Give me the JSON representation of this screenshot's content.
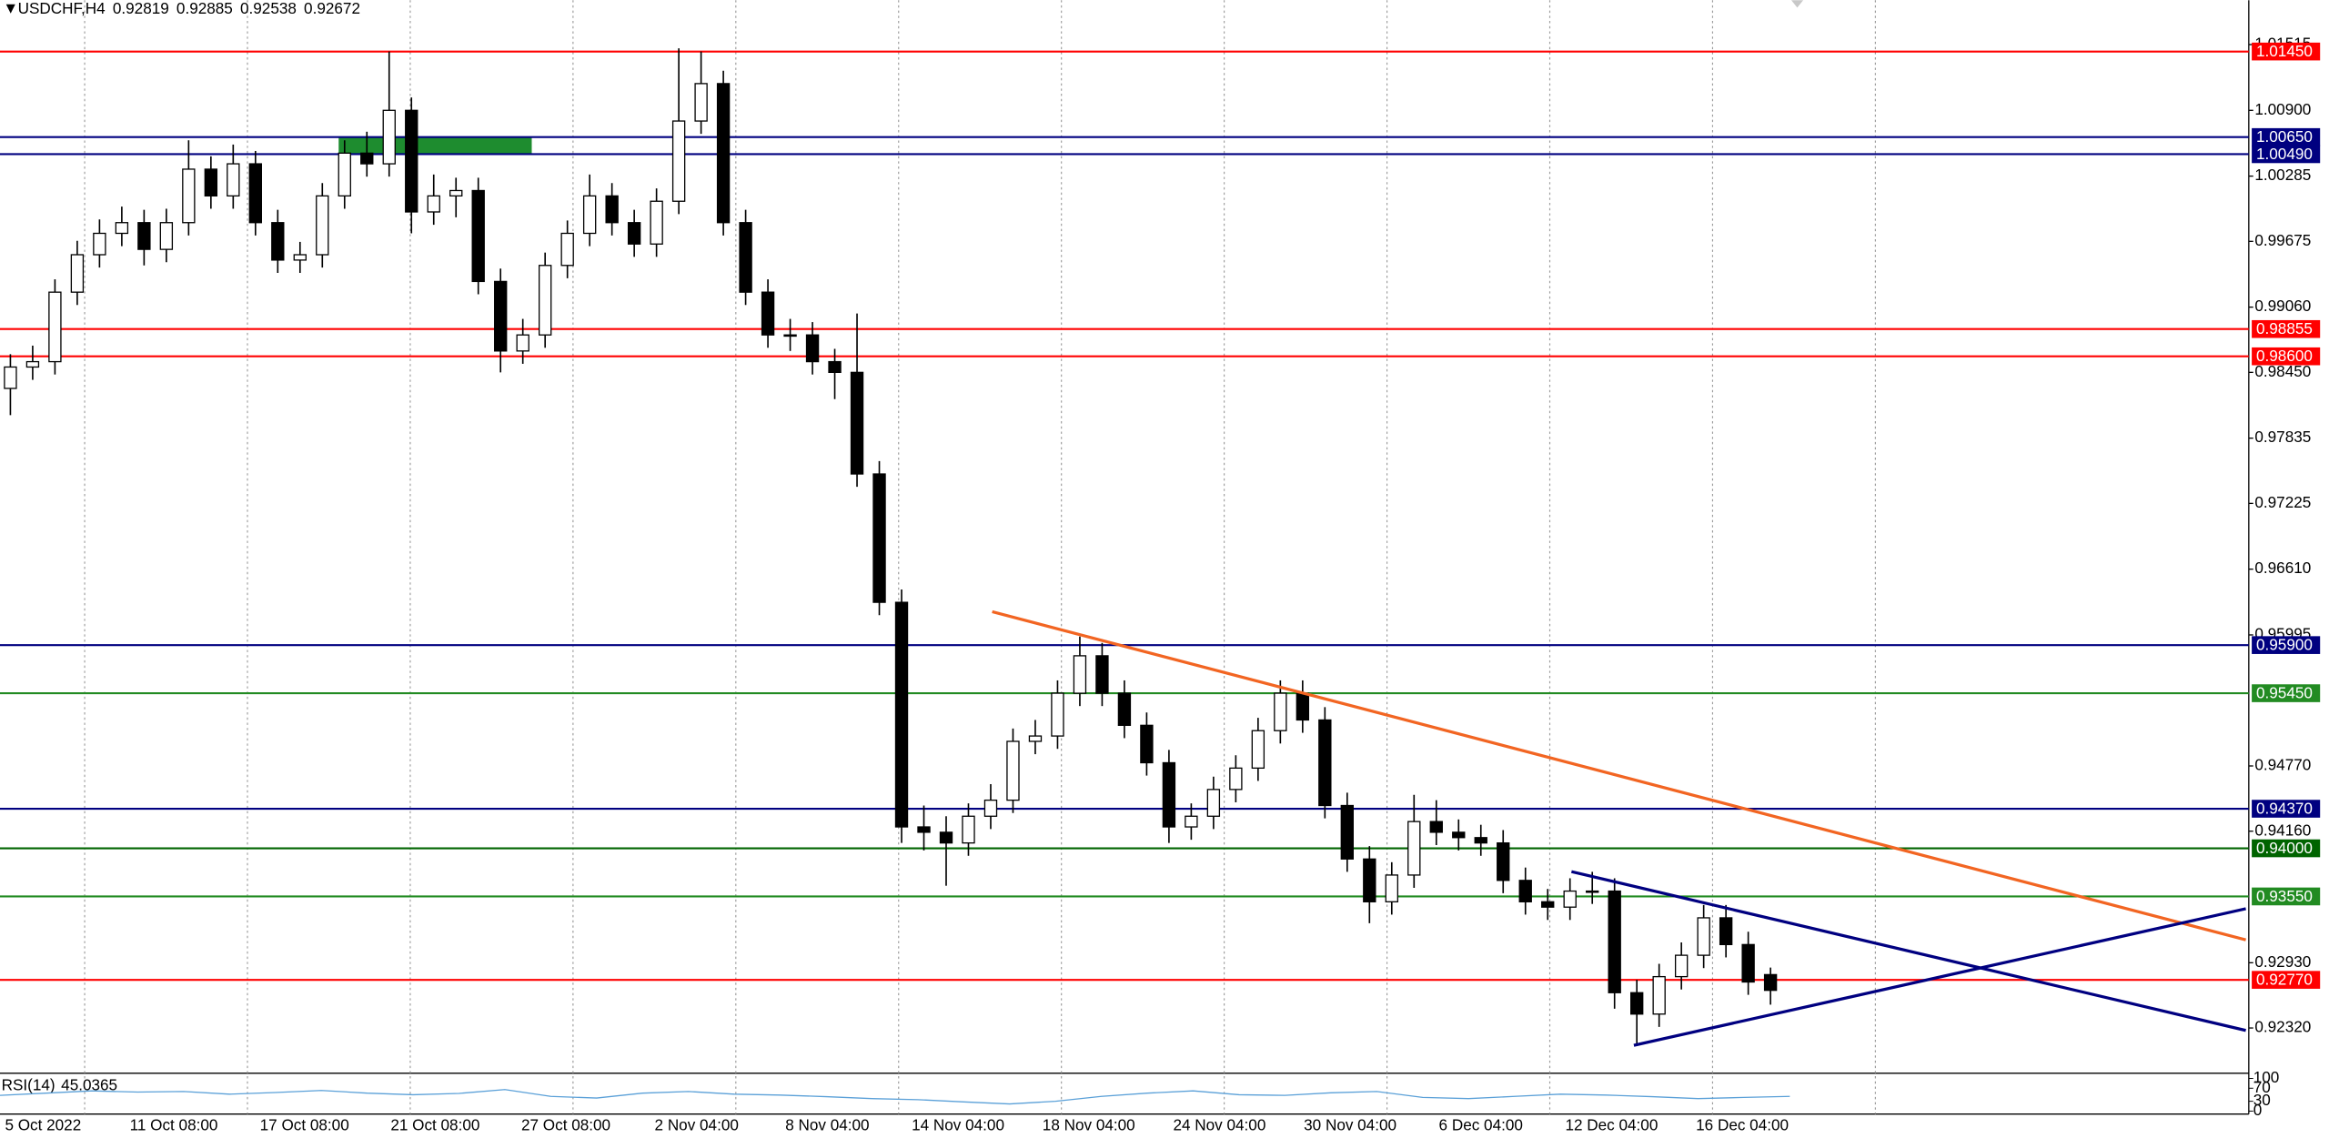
{
  "chart_data": {
    "type": "candlestick",
    "header": {
      "symbol": "USDCHF,H4",
      "values": [
        0.92819,
        0.92885,
        0.92538,
        0.92672
      ]
    },
    "x_labels": [
      "5 Oct 2022",
      "11 Oct 08:00",
      "17 Oct 08:00",
      "21 Oct 08:00",
      "27 Oct 08:00",
      "2 Nov 04:00",
      "8 Nov 04:00",
      "14 Nov 04:00",
      "18 Nov 04:00",
      "24 Nov 04:00",
      "30 Nov 04:00",
      "6 Dec 04:00",
      "12 Dec 04:00",
      "16 Dec 04:00"
    ],
    "ylim": [
      0.91904,
      1.0193
    ],
    "yticks": [
      {
        "value": 1.01515,
        "label": "1.01515"
      },
      {
        "value": 1.009,
        "label": "1.00900"
      },
      {
        "value": 1.00285,
        "label": "1.00285"
      },
      {
        "value": 0.99675,
        "label": "0.99675"
      },
      {
        "value": 0.9906,
        "label": "0.99060"
      },
      {
        "value": 0.9845,
        "label": "0.98450"
      },
      {
        "value": 0.97835,
        "label": "0.97835"
      },
      {
        "value": 0.97225,
        "label": "0.97225"
      },
      {
        "value": 0.9661,
        "label": "0.96610"
      },
      {
        "value": 0.95995,
        "label": "0.95995"
      },
      {
        "value": 0.9477,
        "label": "0.94770"
      },
      {
        "value": 0.9416,
        "label": "0.94160"
      },
      {
        "value": 0.9293,
        "label": "0.92930"
      },
      {
        "value": 0.9232,
        "label": "0.92320"
      }
    ],
    "open": [
      0.983,
      0.985,
      0.9855,
      0.992,
      0.9955,
      0.9975,
      0.9985,
      0.996,
      0.9985,
      1.0035,
      1.001,
      1.004,
      0.9985,
      0.995,
      0.9955,
      1.001,
      1.005,
      1.004,
      1.009,
      0.9995,
      1.001,
      1.0015,
      0.993,
      0.9865,
      0.988,
      0.9945,
      0.9975,
      1.001,
      0.9985,
      0.9965,
      1.0005,
      1.008,
      1.0115,
      0.9985,
      0.992,
      0.988,
      0.988,
      0.9855,
      0.9845,
      0.975,
      0.963,
      0.942,
      0.9415,
      0.9405,
      0.943,
      0.9445,
      0.95,
      0.9505,
      0.9545,
      0.958,
      0.9545,
      0.9515,
      0.948,
      0.942,
      0.943,
      0.9455,
      0.9475,
      0.951,
      0.9545,
      0.952,
      0.944,
      0.939,
      0.935,
      0.9375,
      0.9425,
      0.9415,
      0.941,
      0.9405,
      0.937,
      0.935,
      0.9345,
      0.936,
      0.936,
      0.9265,
      0.9245,
      0.928,
      0.93,
      0.9335,
      0.931,
      0.92819
    ],
    "high": [
      0.9862,
      0.987,
      0.9932,
      0.9968,
      0.9988,
      1.0,
      0.9997,
      0.9998,
      1.0062,
      1.0047,
      1.0058,
      1.0052,
      0.9997,
      0.9967,
      1.0022,
      1.0062,
      1.007,
      1.0145,
      1.0102,
      1.003,
      1.0027,
      1.0027,
      0.9942,
      0.9895,
      0.9957,
      0.9987,
      1.003,
      1.0022,
      0.9997,
      1.0017,
      1.0148,
      1.0145,
      1.0127,
      0.9997,
      0.9932,
      0.9895,
      0.9892,
      0.9867,
      0.99,
      0.9762,
      0.9642,
      0.944,
      0.943,
      0.9442,
      0.946,
      0.9512,
      0.952,
      0.9557,
      0.9598,
      0.9592,
      0.9557,
      0.9527,
      0.9492,
      0.9442,
      0.9467,
      0.9487,
      0.9522,
      0.9557,
      0.9557,
      0.9532,
      0.9452,
      0.9402,
      0.9387,
      0.945,
      0.9445,
      0.9427,
      0.9422,
      0.9417,
      0.9382,
      0.9362,
      0.9372,
      0.9378,
      0.9372,
      0.9277,
      0.9292,
      0.9312,
      0.9347,
      0.9347,
      0.9322,
      0.92885
    ],
    "low": [
      0.9805,
      0.9838,
      0.9843,
      0.9908,
      0.9943,
      0.9963,
      0.9945,
      0.9948,
      0.9973,
      0.9998,
      0.9998,
      0.9973,
      0.9938,
      0.9938,
      0.9943,
      0.9998,
      1.0028,
      1.0028,
      0.9975,
      0.9983,
      0.999,
      0.9918,
      0.9845,
      0.9853,
      0.9868,
      0.9933,
      0.9963,
      0.9973,
      0.9953,
      0.9953,
      0.9993,
      1.0068,
      0.9973,
      0.9908,
      0.9868,
      0.9865,
      0.9843,
      0.982,
      0.9738,
      0.9618,
      0.9405,
      0.9398,
      0.9365,
      0.9393,
      0.9418,
      0.9433,
      0.9488,
      0.9493,
      0.9533,
      0.9533,
      0.9503,
      0.9468,
      0.9405,
      0.9408,
      0.9418,
      0.9443,
      0.9463,
      0.9498,
      0.9508,
      0.9428,
      0.9378,
      0.933,
      0.9338,
      0.9363,
      0.9403,
      0.9398,
      0.9393,
      0.9358,
      0.9338,
      0.9333,
      0.9333,
      0.9348,
      0.925,
      0.9215,
      0.9233,
      0.9268,
      0.9288,
      0.9298,
      0.9263,
      0.92538
    ],
    "close": [
      0.985,
      0.9855,
      0.992,
      0.9955,
      0.9975,
      0.9985,
      0.996,
      0.9985,
      1.0035,
      1.001,
      1.004,
      0.9985,
      0.995,
      0.9955,
      1.001,
      1.005,
      1.004,
      1.009,
      0.9995,
      1.001,
      1.0015,
      0.993,
      0.9865,
      0.988,
      0.9945,
      0.9975,
      1.001,
      0.9985,
      0.9965,
      1.0005,
      1.008,
      1.0115,
      0.9985,
      0.992,
      0.988,
      0.988,
      0.9855,
      0.9845,
      0.975,
      0.963,
      0.942,
      0.9415,
      0.9405,
      0.943,
      0.9445,
      0.95,
      0.9505,
      0.9545,
      0.958,
      0.9545,
      0.9515,
      0.948,
      0.942,
      0.943,
      0.9455,
      0.9475,
      0.951,
      0.9545,
      0.952,
      0.944,
      0.939,
      0.935,
      0.9375,
      0.9425,
      0.9415,
      0.941,
      0.9405,
      0.937,
      0.935,
      0.9345,
      0.936,
      0.936,
      0.9265,
      0.9245,
      0.928,
      0.93,
      0.9335,
      0.931,
      0.9275,
      0.92672
    ],
    "levels": [
      {
        "value": 1.0145,
        "label": "1.01450",
        "color": "#ff0000"
      },
      {
        "value": 1.0065,
        "label": "1.00650",
        "color": "#000080"
      },
      {
        "value": 1.0049,
        "label": "1.00490",
        "color": "#000080"
      },
      {
        "value": 0.98855,
        "label": "0.98855",
        "color": "#ff0000"
      },
      {
        "value": 0.986,
        "label": "0.98600",
        "color": "#ff0000"
      },
      {
        "value": 0.959,
        "label": "0.95900",
        "color": "#000080"
      },
      {
        "value": 0.9545,
        "label": "0.95450",
        "color": "#228b22"
      },
      {
        "value": 0.9437,
        "label": "0.94370",
        "color": "#000080"
      },
      {
        "value": 0.94,
        "label": "0.94000",
        "color": "#006400"
      },
      {
        "value": 0.9355,
        "label": "0.93550",
        "color": "#228b22"
      },
      {
        "value": 0.9277,
        "label": "0.92770",
        "color": "#ff0000"
      }
    ],
    "zone": {
      "top": 1.0065,
      "bottom": 1.0049,
      "color": "#1e8c2f"
    },
    "trendlines": [
      {
        "y": [
          0.96212,
          0.93144
        ],
        "color": "#f26522"
      },
      {
        "y": [
          0.93782,
          0.92297
        ],
        "color": "#000080"
      },
      {
        "y": [
          0.92158,
          0.93435
        ],
        "color": "#000080"
      }
    ],
    "rsi": {
      "name": "RSI(14)",
      "value": 45.0365,
      "color": "#5aa0d8",
      "ylim": [
        0,
        100
      ],
      "yticks": [
        0,
        30,
        70,
        100
      ],
      "values": [
        48,
        55,
        62,
        58,
        60,
        52,
        57,
        63,
        55,
        50,
        54,
        66,
        45,
        40,
        55,
        60,
        52,
        49,
        44,
        38,
        35,
        28,
        22,
        30,
        45,
        55,
        62,
        50,
        48,
        56,
        60,
        42,
        38,
        45,
        52,
        49,
        44,
        38,
        42,
        45.0365
      ]
    }
  }
}
